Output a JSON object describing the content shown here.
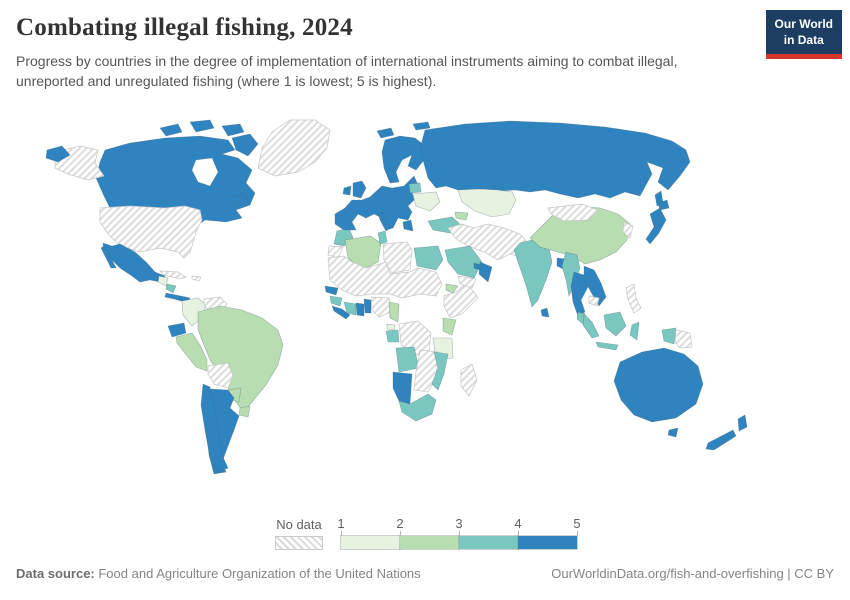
{
  "header": {
    "title": "Combating illegal fishing, 2024",
    "subtitle": "Progress by countries in the degree of implementation of international instruments aiming to combat illegal, unreported and unregulated fishing (where 1 is lowest; 5 is highest).",
    "logo": {
      "line1": "Our World",
      "line2": "in Data"
    }
  },
  "footer": {
    "source_label": "Data source:",
    "source_text": " Food and Agriculture Organization of the United Nations",
    "attribution": "OurWorldinData.org/fish-and-overfishing | CC BY"
  },
  "chart_data": {
    "type": "choropleth",
    "title": "Combating illegal fishing, 2024",
    "scale_note": "1 is lowest; 5 is highest",
    "legend": {
      "no_data_label": "No data",
      "ticks": [
        1,
        2,
        3,
        4,
        5
      ],
      "bins": [
        {
          "range": "1–2",
          "color": "#e7f3e0"
        },
        {
          "range": "2–3",
          "color": "#b7ddb0"
        },
        {
          "range": "3–4",
          "color": "#79c7bf"
        },
        {
          "range": "4–5",
          "color": "#2f84bf"
        }
      ]
    },
    "countries": [
      {
        "code": "GRL",
        "name": "Greenland",
        "bin": null
      },
      {
        "code": "USA",
        "name": "United States",
        "bin": null
      },
      {
        "code": "CUB",
        "name": "Cuba",
        "bin": null
      },
      {
        "code": "HSP",
        "name": "Haiti and Dominican Republic",
        "bin": null
      },
      {
        "code": "VEN",
        "name": "Venezuela",
        "bin": null
      },
      {
        "code": "BOL",
        "name": "Bolivia",
        "bin": null
      },
      {
        "code": "ESH",
        "name": "Western Sahara",
        "bin": null
      },
      {
        "code": "LBY",
        "name": "Libya",
        "bin": null
      },
      {
        "code": "SAHEL",
        "name": "Mauritania, Mali, Niger, Chad, Sudan",
        "bin": null
      },
      {
        "code": "HORN",
        "name": "Ethiopia and Somalia",
        "bin": null
      },
      {
        "code": "NGA",
        "name": "Nigeria",
        "bin": null
      },
      {
        "code": "COD",
        "name": "Congo and DR Congo",
        "bin": null
      },
      {
        "code": "ZMB",
        "name": "Zambia, Zimbabwe, Botswana",
        "bin": null
      },
      {
        "code": "MDG",
        "name": "Madagascar",
        "bin": null
      },
      {
        "code": "YEM",
        "name": "Yemen",
        "bin": null
      },
      {
        "code": "WCA",
        "name": "Iran, Iraq, Syria, Afghanistan, Pakistan, Central Asia",
        "bin": null
      },
      {
        "code": "MNG",
        "name": "Mongolia",
        "bin": null
      },
      {
        "code": "KOR",
        "name": "North and South Korea",
        "bin": null
      },
      {
        "code": "KHM",
        "name": "Cambodia",
        "bin": null
      },
      {
        "code": "PHL",
        "name": "Philippines",
        "bin": null
      },
      {
        "code": "PNG",
        "name": "Papua New Guinea",
        "bin": null
      },
      {
        "code": "GTM",
        "name": "Guatemala",
        "bin": 1
      },
      {
        "code": "COL",
        "name": "Colombia",
        "bin": 1
      },
      {
        "code": "UKR",
        "name": "Ukraine",
        "bin": 1
      },
      {
        "code": "KAZ",
        "name": "Kazakhstan",
        "bin": 1
      },
      {
        "code": "GNQ",
        "name": "Equatorial Guinea",
        "bin": 1
      },
      {
        "code": "TZA",
        "name": "Tanzania",
        "bin": 1
      },
      {
        "code": "GUY",
        "name": "Guyana",
        "bin": 2
      },
      {
        "code": "PER",
        "name": "Peru",
        "bin": 2
      },
      {
        "code": "BRA",
        "name": "Brazil",
        "bin": 2
      },
      {
        "code": "PRY",
        "name": "Paraguay",
        "bin": 2
      },
      {
        "code": "URY",
        "name": "Uruguay",
        "bin": 2
      },
      {
        "code": "DZA",
        "name": "Algeria",
        "bin": 2
      },
      {
        "code": "CMR",
        "name": "Cameroon",
        "bin": 2
      },
      {
        "code": "ERI",
        "name": "Eritrea",
        "bin": 2
      },
      {
        "code": "KEN",
        "name": "Kenya",
        "bin": 2
      },
      {
        "code": "CAU",
        "name": "Georgia and Azerbaijan",
        "bin": 2
      },
      {
        "code": "CHN",
        "name": "China",
        "bin": 2
      },
      {
        "code": "NIC",
        "name": "Nicaragua",
        "bin": 3
      },
      {
        "code": "MAR",
        "name": "Morocco",
        "bin": 3
      },
      {
        "code": "TUN",
        "name": "Tunisia",
        "bin": 3
      },
      {
        "code": "EGY",
        "name": "Egypt",
        "bin": 3
      },
      {
        "code": "GIN",
        "name": "Guinea",
        "bin": 3
      },
      {
        "code": "CIV",
        "name": "Côte d'Ivoire",
        "bin": 3
      },
      {
        "code": "GAB",
        "name": "Gabon",
        "bin": 3
      },
      {
        "code": "AGO",
        "name": "Angola",
        "bin": 3
      },
      {
        "code": "MOZ",
        "name": "Mozambique",
        "bin": 3
      },
      {
        "code": "ZAF",
        "name": "South Africa",
        "bin": 3
      },
      {
        "code": "BLR",
        "name": "Belarus",
        "bin": 3
      },
      {
        "code": "TUR",
        "name": "Turkey",
        "bin": 3
      },
      {
        "code": "SAU",
        "name": "Saudi Arabia",
        "bin": 3
      },
      {
        "code": "IND",
        "name": "India",
        "bin": 3
      },
      {
        "code": "MMR",
        "name": "Myanmar",
        "bin": 3
      },
      {
        "code": "MYS",
        "name": "Malaysia",
        "bin": 3
      },
      {
        "code": "IDN",
        "name": "Indonesia",
        "bin": 3
      },
      {
        "code": "CAN",
        "name": "Canada",
        "bin": 4
      },
      {
        "code": "MEX",
        "name": "Mexico",
        "bin": 4
      },
      {
        "code": "CRI",
        "name": "Costa Rica and Panama",
        "bin": 4
      },
      {
        "code": "ECU",
        "name": "Ecuador",
        "bin": 4
      },
      {
        "code": "CHL",
        "name": "Chile",
        "bin": 4
      },
      {
        "code": "ARG",
        "name": "Argentina",
        "bin": 4
      },
      {
        "code": "ISL",
        "name": "Iceland",
        "bin": 4
      },
      {
        "code": "IRL",
        "name": "Ireland",
        "bin": 4
      },
      {
        "code": "GBR",
        "name": "United Kingdom",
        "bin": 4
      },
      {
        "code": "SCA",
        "name": "Norway, Sweden, Finland",
        "bin": 4
      },
      {
        "code": "SVA",
        "name": "Svalbard (Norway)",
        "bin": 4
      },
      {
        "code": "EUR",
        "name": "Europe (EU and Balkans)",
        "bin": 4
      },
      {
        "code": "RUS",
        "name": "Russia",
        "bin": 4
      },
      {
        "code": "OMN",
        "name": "Oman",
        "bin": 4
      },
      {
        "code": "ARE",
        "name": "United Arab Emirates",
        "bin": 4
      },
      {
        "code": "LKA",
        "name": "Sri Lanka",
        "bin": 4
      },
      {
        "code": "BGD",
        "name": "Bangladesh",
        "bin": 4
      },
      {
        "code": "THA",
        "name": "Thailand",
        "bin": 4
      },
      {
        "code": "VNM",
        "name": "Vietnam and Laos",
        "bin": 4
      },
      {
        "code": "JPN",
        "name": "Japan",
        "bin": 4
      },
      {
        "code": "SEN",
        "name": "Senegal and Gambia",
        "bin": 4
      },
      {
        "code": "SLE",
        "name": "Sierra Leone and Liberia",
        "bin": 4
      },
      {
        "code": "GHA",
        "name": "Ghana",
        "bin": 4
      },
      {
        "code": "TGO",
        "name": "Togo and Benin",
        "bin": 4
      },
      {
        "code": "NAM",
        "name": "Namibia",
        "bin": 4
      },
      {
        "code": "AUS",
        "name": "Australia",
        "bin": 4
      },
      {
        "code": "NZL",
        "name": "New Zealand",
        "bin": 4
      }
    ]
  }
}
